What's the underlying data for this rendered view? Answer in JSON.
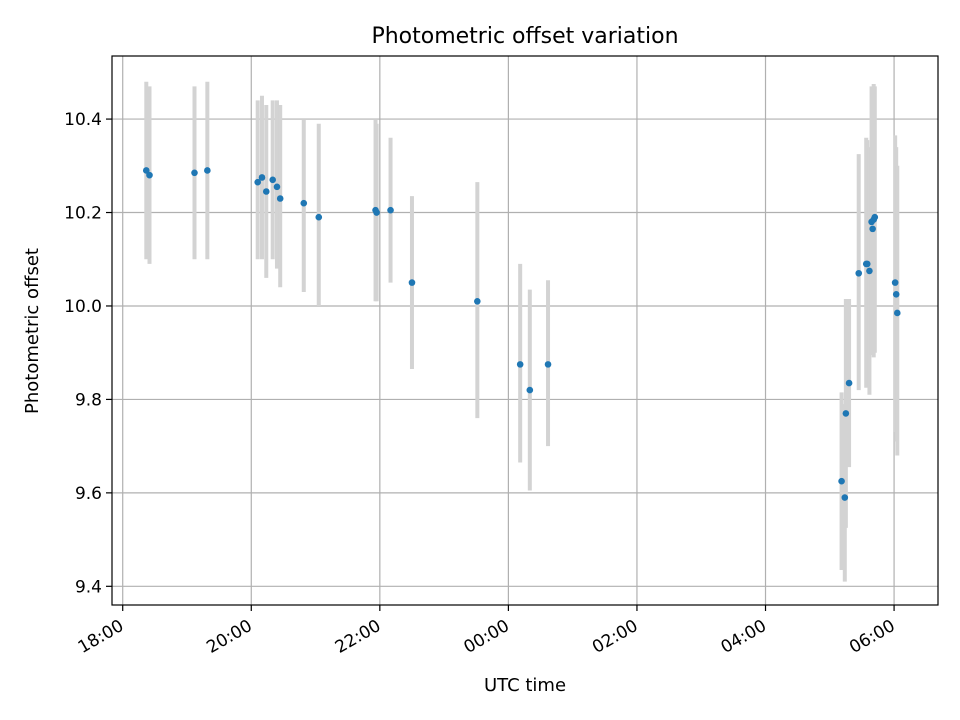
{
  "chart_data": {
    "type": "scatter",
    "title": "Photometric offset variation",
    "xlabel": "UTC time",
    "ylabel": "Photometric offset",
    "x_ticks": [
      "18:00",
      "20:00",
      "22:00",
      "00:00",
      "02:00",
      "04:00",
      "06:00"
    ],
    "y_ticks": [
      "9.4",
      "9.6",
      "9.8",
      "10.0",
      "10.2",
      "10.4"
    ],
    "y_tick_values": [
      9.4,
      9.6,
      9.8,
      10.0,
      10.2,
      10.4
    ],
    "xlim": [
      "17:50",
      "06:41"
    ],
    "ylim": [
      9.36,
      10.535
    ],
    "grid": true,
    "colors": {
      "point": "#1f77b4",
      "error_bar": "#d3d3d3",
      "grid": "#b0b0b0"
    },
    "points": [
      {
        "t": "18:22",
        "y": 10.29,
        "lo": 10.1,
        "hi": 10.48
      },
      {
        "t": "18:25",
        "y": 10.28,
        "lo": 10.09,
        "hi": 10.47
      },
      {
        "t": "19:07",
        "y": 10.285,
        "lo": 10.1,
        "hi": 10.47
      },
      {
        "t": "19:19",
        "y": 10.29,
        "lo": 10.1,
        "hi": 10.48
      },
      {
        "t": "20:06",
        "y": 10.265,
        "lo": 10.1,
        "hi": 10.44
      },
      {
        "t": "20:10",
        "y": 10.275,
        "lo": 10.1,
        "hi": 10.45
      },
      {
        "t": "20:14",
        "y": 10.245,
        "lo": 10.06,
        "hi": 10.43
      },
      {
        "t": "20:20",
        "y": 10.27,
        "lo": 10.1,
        "hi": 10.44
      },
      {
        "t": "20:24",
        "y": 10.255,
        "lo": 10.08,
        "hi": 10.44
      },
      {
        "t": "20:27",
        "y": 10.23,
        "lo": 10.04,
        "hi": 10.43
      },
      {
        "t": "20:49",
        "y": 10.22,
        "lo": 10.03,
        "hi": 10.4
      },
      {
        "t": "21:03",
        "y": 10.19,
        "lo": 10.0,
        "hi": 10.39
      },
      {
        "t": "21:56",
        "y": 10.205,
        "lo": 10.01,
        "hi": 10.4
      },
      {
        "t": "21:57",
        "y": 10.2,
        "lo": 10.01,
        "hi": 10.39
      },
      {
        "t": "22:10",
        "y": 10.205,
        "lo": 10.05,
        "hi": 10.36
      },
      {
        "t": "22:30",
        "y": 10.05,
        "lo": 9.865,
        "hi": 10.235
      },
      {
        "t": "23:31",
        "y": 10.01,
        "lo": 9.76,
        "hi": 10.265
      },
      {
        "t": "00:11",
        "y": 9.875,
        "lo": 9.665,
        "hi": 10.09
      },
      {
        "t": "00:20",
        "y": 9.82,
        "lo": 9.605,
        "hi": 10.035
      },
      {
        "t": "00:37",
        "y": 9.875,
        "lo": 9.7,
        "hi": 10.055
      },
      {
        "t": "05:11",
        "y": 9.625,
        "lo": 9.435,
        "hi": 9.815
      },
      {
        "t": "05:14",
        "y": 9.59,
        "lo": 9.41,
        "hi": 9.79
      },
      {
        "t": "05:15",
        "y": 9.77,
        "lo": 9.525,
        "hi": 10.015
      },
      {
        "t": "05:18",
        "y": 9.835,
        "lo": 9.655,
        "hi": 10.015
      },
      {
        "t": "05:27",
        "y": 10.07,
        "lo": 9.82,
        "hi": 10.325
      },
      {
        "t": "05:34",
        "y": 10.09,
        "lo": 9.825,
        "hi": 10.36
      },
      {
        "t": "05:35",
        "y": 10.09,
        "lo": 9.83,
        "hi": 10.355
      },
      {
        "t": "05:37",
        "y": 10.075,
        "lo": 9.81,
        "hi": 10.34
      },
      {
        "t": "05:39",
        "y": 10.18,
        "lo": 9.895,
        "hi": 10.47
      },
      {
        "t": "05:40",
        "y": 10.165,
        "lo": 9.905,
        "hi": 10.42
      },
      {
        "t": "05:41",
        "y": 10.185,
        "lo": 9.89,
        "hi": 10.475
      },
      {
        "t": "05:42",
        "y": 10.19,
        "lo": 9.9,
        "hi": 10.47
      },
      {
        "t": "06:01",
        "y": 10.05,
        "lo": 9.73,
        "hi": 10.365
      },
      {
        "t": "06:02",
        "y": 10.025,
        "lo": 9.71,
        "hi": 10.34
      },
      {
        "t": "06:03",
        "y": 9.985,
        "lo": 9.68,
        "hi": 10.3
      }
    ]
  }
}
